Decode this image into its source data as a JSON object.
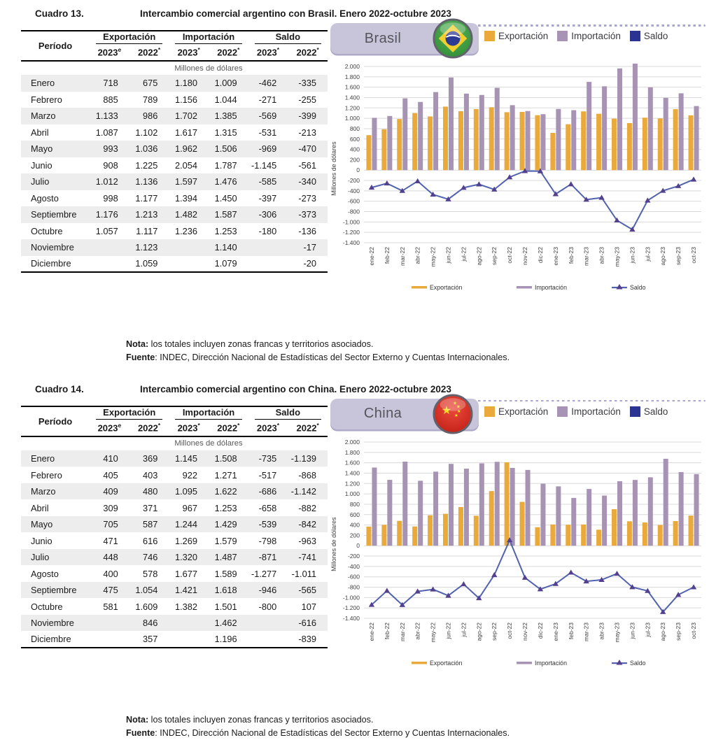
{
  "colors": {
    "export": "#E9A93B",
    "import": "#A793B3",
    "saldo_square": "#2B3490",
    "saldo_line": "#5163AE",
    "saldo_marker": "#53418F",
    "grid": "#D9D9D9",
    "axis_text": "#3F3F3F",
    "badge_bg": "#C8C5DB",
    "badge_shadow": "#AEAAC8",
    "badge_text": "#54545B",
    "dotted": "#A8A6CC",
    "row_shade": "#EDEDED"
  },
  "sections": [
    {
      "cuadro_label": "Cuadro 13.",
      "title": "Intercambio comercial argentino con Brasil. Enero 2022-octubre 2023",
      "country": "Brasil",
      "table": {
        "period_header": "Período",
        "unit_label": "Millones de dólares",
        "groups": [
          {
            "label": "Exportación"
          },
          {
            "label": "Importación"
          },
          {
            "label": "Saldo"
          }
        ],
        "year_headers": [
          {
            "year": "2023",
            "sup": "e"
          },
          {
            "year": "2022",
            "sup": "*"
          },
          {
            "year": "2023",
            "sup": "*"
          },
          {
            "year": "2022",
            "sup": "*"
          },
          {
            "year": "2023",
            "sup": "*"
          },
          {
            "year": "2022",
            "sup": "*"
          }
        ],
        "rows": [
          {
            "period": "Enero",
            "values": [
              "718",
              "675",
              "1.180",
              "1.009",
              "-462",
              "-335"
            ]
          },
          {
            "period": "Febrero",
            "values": [
              "885",
              "789",
              "1.156",
              "1.044",
              "-271",
              "-255"
            ]
          },
          {
            "period": "Marzo",
            "values": [
              "1.133",
              "986",
              "1.702",
              "1.385",
              "-569",
              "-399"
            ]
          },
          {
            "period": "Abril",
            "values": [
              "1.087",
              "1.102",
              "1.617",
              "1.315",
              "-531",
              "-213"
            ]
          },
          {
            "period": "Mayo",
            "values": [
              "993",
              "1.036",
              "1.962",
              "1.506",
              "-969",
              "-470"
            ]
          },
          {
            "period": "Junio",
            "values": [
              "908",
              "1.225",
              "2.054",
              "1.787",
              "-1.145",
              "-561"
            ]
          },
          {
            "period": "Julio",
            "values": [
              "1.012",
              "1.136",
              "1.597",
              "1.476",
              "-585",
              "-340"
            ]
          },
          {
            "period": "Agosto",
            "values": [
              "998",
              "1.177",
              "1.394",
              "1.450",
              "-397",
              "-273"
            ]
          },
          {
            "period": "Septiembre",
            "values": [
              "1.176",
              "1.213",
              "1.482",
              "1.587",
              "-306",
              "-373"
            ]
          },
          {
            "period": "Octubre",
            "values": [
              "1.057",
              "1.117",
              "1.236",
              "1.253",
              "-180",
              "-136"
            ]
          },
          {
            "period": "Noviembre",
            "values": [
              "",
              "1.123",
              "",
              "1.140",
              "",
              "-17"
            ]
          },
          {
            "period": "Diciembre",
            "values": [
              "",
              "1.059",
              "",
              "1.079",
              "",
              "-20"
            ]
          }
        ]
      },
      "notes": {
        "nota_label": "Nota:",
        "nota_text": " los totales incluyen zonas francas y territorios asociados.",
        "fuente_label": "Fuente",
        "fuente_text": ": INDEC, Dirección Nacional de Estadísticas del Sector Externo y Cuentas Internacionales."
      },
      "chart_data": {
        "type": "bar+line",
        "title": "Brasil",
        "ylabel": "Millones de dólares",
        "ylim": [
          -1400,
          2000
        ],
        "ytick_step": 200,
        "grid": true,
        "legend_top": [
          "Exportación",
          "Importación",
          "Saldo"
        ],
        "legend_bottom": [
          "Exportación",
          "Importación",
          "Saldo"
        ],
        "categories": [
          "ene-22",
          "feb-22",
          "mar-22",
          "abr-22",
          "may-22",
          "jun-22",
          "jul-22",
          "ago-22",
          "sep-22",
          "oct-22",
          "nov-22",
          "dic-22",
          "ene-23",
          "feb-23",
          "mar-23",
          "abr-23",
          "may-23",
          "jun-23",
          "jul-23",
          "ago-23",
          "sep-23",
          "oct-23"
        ],
        "series": [
          {
            "name": "Exportación",
            "type": "bar",
            "values": [
              675,
              789,
              986,
              1102,
              1036,
              1225,
              1136,
              1177,
              1213,
              1117,
              1123,
              1059,
              718,
              885,
              1133,
              1087,
              993,
              908,
              1012,
              998,
              1176,
              1057
            ]
          },
          {
            "name": "Importación",
            "type": "bar",
            "values": [
              1009,
              1044,
              1385,
              1315,
              1506,
              1787,
              1476,
              1450,
              1587,
              1253,
              1140,
              1079,
              1180,
              1156,
              1702,
              1617,
              1962,
              2054,
              1597,
              1394,
              1482,
              1236
            ]
          },
          {
            "name": "Saldo",
            "type": "line",
            "values": [
              -335,
              -255,
              -399,
              -213,
              -470,
              -561,
              -340,
              -273,
              -373,
              -136,
              -17,
              -20,
              -462,
              -271,
              -569,
              -531,
              -969,
              -1145,
              -585,
              -397,
              -306,
              -180
            ]
          }
        ]
      }
    },
    {
      "cuadro_label": "Cuadro 14.",
      "title": "Intercambio comercial argentino con China. Enero 2022-octubre 2023",
      "country": "China",
      "table": {
        "period_header": "Período",
        "unit_label": "Millones de dólares",
        "groups": [
          {
            "label": "Exportación"
          },
          {
            "label": "Importación"
          },
          {
            "label": "Saldo"
          }
        ],
        "year_headers": [
          {
            "year": "2023",
            "sup": "e"
          },
          {
            "year": "2022",
            "sup": "*"
          },
          {
            "year": "2023",
            "sup": "*"
          },
          {
            "year": "2022",
            "sup": "*"
          },
          {
            "year": "2023",
            "sup": "*"
          },
          {
            "year": "2022",
            "sup": "*"
          }
        ],
        "rows": [
          {
            "period": "Enero",
            "values": [
              "410",
              "369",
              "1.145",
              "1.508",
              "-735",
              "-1.139"
            ]
          },
          {
            "period": "Febrero",
            "values": [
              "405",
              "403",
              "922",
              "1.271",
              "-517",
              "-868"
            ]
          },
          {
            "period": "Marzo",
            "values": [
              "409",
              "480",
              "1.095",
              "1.622",
              "-686",
              "-1.142"
            ]
          },
          {
            "period": "Abril",
            "values": [
              "309",
              "371",
              "967",
              "1.253",
              "-658",
              "-882"
            ]
          },
          {
            "period": "Mayo",
            "values": [
              "705",
              "587",
              "1.244",
              "1.429",
              "-539",
              "-842"
            ]
          },
          {
            "period": "Junio",
            "values": [
              "471",
              "616",
              "1.269",
              "1.579",
              "-798",
              "-963"
            ]
          },
          {
            "period": "Julio",
            "values": [
              "448",
              "746",
              "1.320",
              "1.487",
              "-871",
              "-741"
            ]
          },
          {
            "period": "Agosto",
            "values": [
              "400",
              "578",
              "1.677",
              "1.589",
              "-1.277",
              "-1.011"
            ]
          },
          {
            "period": "Septiembre",
            "values": [
              "475",
              "1.054",
              "1.421",
              "1.618",
              "-946",
              "-565"
            ]
          },
          {
            "period": "Octubre",
            "values": [
              "581",
              "1.609",
              "1.382",
              "1.501",
              "-800",
              "107"
            ]
          },
          {
            "period": "Noviembre",
            "values": [
              "",
              "846",
              "",
              "1.462",
              "",
              "-616"
            ]
          },
          {
            "period": "Diciembre",
            "values": [
              "",
              "357",
              "",
              "1.196",
              "",
              "-839"
            ]
          }
        ]
      },
      "notes": {
        "nota_label": "Nota:",
        "nota_text": " los totales incluyen zonas francas y territorios asociados.",
        "fuente_label": "Fuente",
        "fuente_text": ": INDEC, Dirección Nacional de Estadísticas del Sector Externo y Cuentas Internacionales."
      },
      "chart_data": {
        "type": "bar+line",
        "title": "China",
        "ylabel": "Millones de dólares",
        "ylim": [
          -1400,
          2000
        ],
        "ytick_step": 200,
        "grid": true,
        "legend_top": [
          "Exportación",
          "Importación",
          "Saldo"
        ],
        "legend_bottom": [
          "Exportación",
          "Importación",
          "Saldo"
        ],
        "categories": [
          "ene-22",
          "feb-22",
          "mar-22",
          "abr-22",
          "may-22",
          "jun-22",
          "jul-22",
          "ago-22",
          "sep-22",
          "oct-22",
          "nov-22",
          "dic-22",
          "ene-23",
          "feb-23",
          "mar-23",
          "abr-23",
          "may-23",
          "jun-23",
          "jul-23",
          "ago-23",
          "sep-23",
          "oct-23"
        ],
        "series": [
          {
            "name": "Exportación",
            "type": "bar",
            "values": [
              369,
              403,
              480,
              371,
              587,
              616,
              746,
              578,
              1054,
              1609,
              846,
              357,
              410,
              405,
              409,
              309,
              705,
              471,
              448,
              400,
              475,
              581
            ]
          },
          {
            "name": "Importación",
            "type": "bar",
            "values": [
              1508,
              1271,
              1622,
              1253,
              1429,
              1579,
              1487,
              1589,
              1618,
              1501,
              1462,
              1196,
              1145,
              922,
              1095,
              967,
              1244,
              1269,
              1320,
              1677,
              1421,
              1382
            ]
          },
          {
            "name": "Saldo",
            "type": "line",
            "values": [
              -1139,
              -868,
              -1142,
              -882,
              -842,
              -963,
              -741,
              -1011,
              -565,
              107,
              -616,
              -839,
              -735,
              -517,
              -686,
              -658,
              -539,
              -798,
              -871,
              -1277,
              -946,
              -800
            ]
          }
        ]
      }
    }
  ]
}
